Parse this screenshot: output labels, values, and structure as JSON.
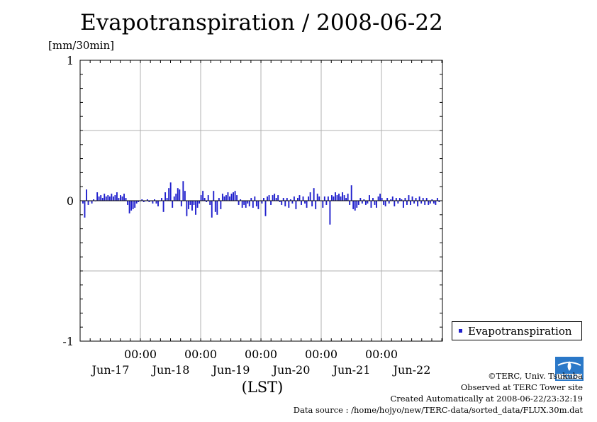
{
  "title": "Evapotranspiration / 2008-06-22",
  "chart_data": {
    "type": "bar",
    "ylabel": "[mm/30min]",
    "xlabel": "(LST)",
    "ylim": [
      -1,
      1
    ],
    "y_ticks": [
      "1",
      "0",
      "-1"
    ],
    "x_ticks": [
      {
        "time": "00:00",
        "date": "Jun-17"
      },
      {
        "time": "00:00",
        "date": "Jun-18"
      },
      {
        "time": "00:00",
        "date": "Jun-19"
      },
      {
        "time": "00:00",
        "date": "Jun-20"
      },
      {
        "time": "00:00",
        "date": "Jun-21"
      },
      {
        "time": "00:00",
        "date": "Jun-22"
      }
    ],
    "grid": true,
    "legend_position": "bottom-right",
    "series": [
      {
        "name": "Evapotranspiration",
        "color": "#1f1fcc",
        "values": [
          -0.02,
          -0.12,
          0.08,
          -0.03,
          0.0,
          -0.02,
          0.01,
          0.0,
          0.06,
          0.03,
          0.04,
          0.02,
          0.05,
          0.03,
          0.04,
          0.03,
          0.05,
          0.03,
          0.04,
          0.06,
          0.02,
          0.04,
          0.03,
          0.05,
          0.02,
          -0.03,
          -0.09,
          -0.07,
          -0.06,
          -0.05,
          -0.02,
          -0.01,
          0.0,
          0.01,
          -0.01,
          0.0,
          0.01,
          -0.01,
          0.0,
          -0.02,
          0.01,
          -0.02,
          -0.04,
          0.0,
          0.02,
          -0.08,
          0.06,
          0.02,
          0.09,
          0.13,
          -0.05,
          0.03,
          0.05,
          0.09,
          0.08,
          -0.04,
          0.14,
          0.07,
          -0.11,
          -0.06,
          -0.03,
          -0.07,
          -0.03,
          -0.1,
          -0.05,
          -0.02,
          0.04,
          0.07,
          0.02,
          -0.01,
          0.04,
          -0.03,
          -0.12,
          0.07,
          -0.08,
          -0.1,
          0.02,
          -0.06,
          0.05,
          0.03,
          0.04,
          0.06,
          0.03,
          0.05,
          0.06,
          0.07,
          0.04,
          -0.03,
          0.01,
          -0.05,
          -0.03,
          -0.05,
          -0.02,
          -0.04,
          0.02,
          -0.05,
          0.03,
          -0.04,
          -0.06,
          0.0,
          -0.02,
          0.02,
          -0.11,
          0.03,
          0.04,
          -0.03,
          0.04,
          0.05,
          0.02,
          0.04,
          -0.01,
          -0.03,
          0.02,
          -0.04,
          0.02,
          -0.05,
          0.01,
          -0.02,
          0.03,
          -0.06,
          0.02,
          0.04,
          -0.03,
          0.03,
          -0.02,
          -0.05,
          0.03,
          0.06,
          -0.04,
          0.09,
          -0.06,
          0.05,
          0.03,
          0.0,
          -0.05,
          0.03,
          -0.03,
          0.03,
          -0.17,
          0.04,
          0.03,
          0.06,
          0.04,
          0.05,
          0.03,
          0.06,
          0.04,
          0.02,
          0.05,
          -0.03,
          0.11,
          -0.06,
          -0.07,
          -0.05,
          -0.03,
          0.02,
          -0.02,
          0.01,
          -0.03,
          -0.02,
          0.04,
          -0.05,
          0.02,
          -0.03,
          -0.05,
          0.03,
          0.05,
          0.02,
          -0.03,
          -0.04,
          0.02,
          -0.02,
          0.01,
          0.03,
          -0.04,
          0.02,
          -0.02,
          0.02,
          0.01,
          -0.05,
          0.02,
          -0.03,
          0.04,
          -0.03,
          0.03,
          -0.02,
          0.02,
          -0.04,
          0.03,
          -0.02,
          0.02,
          -0.03,
          0.02,
          -0.03,
          -0.02,
          0.01,
          -0.02,
          -0.03,
          0.02,
          -0.01
        ]
      }
    ]
  },
  "credits": {
    "copyright": "©TERC, Univ. Tsukuba",
    "observed": "Observed at TERC Tower site",
    "created": "Created Automatically at 2008-06-22/23:32:19",
    "source": "Data source : /home/hojyo/new/TERC-data/sorted_data/FLUX.30m.dat"
  },
  "logo_text": "TERC"
}
